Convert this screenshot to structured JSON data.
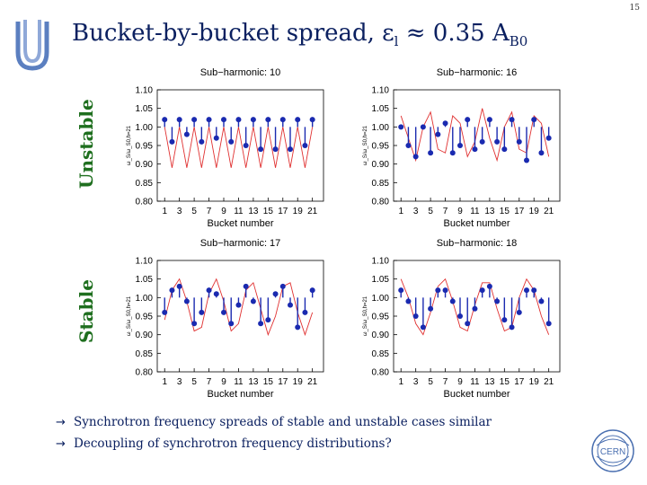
{
  "slide": {
    "page_number": "15",
    "title_main": "Bucket-by-bucket spread, ε",
    "title_sub1": "l",
    "title_rest": " ≈ 0.35 A",
    "title_sub2": "B0",
    "label_unstable": "Unstable",
    "label_stable": "Stable",
    "bullets": [
      "Synchrotron frequency spreads of stable and unstable cases similar",
      "Decoupling of synchrotron frequency distributions?"
    ],
    "bullet_arrow": "→",
    "cern_logo_text": "CERN"
  },
  "colors": {
    "title": "#0b2060",
    "side_labels": "#1f6f1f",
    "stems": "#1a2ab0",
    "reference_curve": "#e03030",
    "axes": "#000000"
  },
  "chart_data": [
    {
      "type": "scatter",
      "title": "Sub−harmonic: 10",
      "xlabel": "Bucket number",
      "ylabel": "ω_S/ω_S0,h=21",
      "xticks": [
        1,
        3,
        5,
        7,
        9,
        11,
        13,
        15,
        17,
        19,
        21
      ],
      "yticks": [
        "0.80",
        "0.85",
        "0.90",
        "0.95",
        "1.00",
        "1.05",
        "1.10"
      ],
      "xlim": [
        0,
        22.5
      ],
      "ylim": [
        0.8,
        1.1
      ],
      "grid": false,
      "baseline": 1.0,
      "series": [
        {
          "x": [
            1,
            2,
            3,
            4,
            5,
            6,
            7,
            8,
            9,
            10,
            11,
            12,
            13,
            14,
            15,
            16,
            17,
            18,
            19,
            20,
            21
          ],
          "values": [
            1.02,
            0.96,
            1.02,
            0.98,
            1.02,
            0.96,
            1.02,
            0.97,
            1.02,
            0.96,
            1.02,
            0.95,
            1.02,
            0.94,
            1.02,
            0.94,
            1.02,
            0.94,
            1.02,
            0.95,
            1.02
          ]
        }
      ],
      "reference_curve_x": [
        1,
        2,
        3,
        4,
        5,
        6,
        7,
        8,
        9,
        10,
        11,
        12,
        13,
        14,
        15,
        16,
        17,
        18,
        19,
        20,
        21
      ],
      "reference_curve_y": [
        1.0,
        0.89,
        1.0,
        0.89,
        1.0,
        0.89,
        1.0,
        0.89,
        1.0,
        0.89,
        1.0,
        0.89,
        1.0,
        0.89,
        1.0,
        0.89,
        1.0,
        0.89,
        1.0,
        0.89,
        1.0
      ]
    },
    {
      "type": "scatter",
      "title": "Sub−harmonic: 16",
      "xlabel": "Bucket number",
      "ylabel": "ω_S/ω_S0,h=21",
      "xticks": [
        1,
        3,
        5,
        7,
        9,
        11,
        13,
        15,
        17,
        19,
        21
      ],
      "yticks": [
        "0.80",
        "0.85",
        "0.90",
        "0.95",
        "1.00",
        "1.05",
        "1.10"
      ],
      "xlim": [
        0,
        22.5
      ],
      "ylim": [
        0.8,
        1.1
      ],
      "grid": false,
      "baseline": 1.0,
      "series": [
        {
          "x": [
            1,
            2,
            3,
            4,
            5,
            6,
            7,
            8,
            9,
            10,
            11,
            12,
            13,
            14,
            15,
            16,
            17,
            18,
            19,
            20,
            21
          ],
          "values": [
            1.0,
            0.95,
            0.92,
            1.0,
            0.93,
            0.98,
            1.01,
            0.93,
            0.95,
            1.02,
            0.94,
            0.96,
            1.02,
            0.96,
            0.94,
            1.02,
            0.96,
            0.91,
            1.02,
            0.93,
            0.97
          ]
        }
      ],
      "reference_curve_x": [
        1,
        2,
        3,
        4,
        5,
        6,
        7,
        8,
        9,
        10,
        11,
        12,
        13,
        14,
        15,
        16,
        17,
        18,
        19,
        20,
        21
      ],
      "reference_curve_y": [
        1.03,
        0.97,
        0.91,
        1.0,
        1.04,
        0.94,
        0.93,
        1.03,
        1.01,
        0.92,
        0.96,
        1.05,
        0.97,
        0.91,
        1.0,
        1.04,
        0.94,
        0.93,
        1.03,
        1.01,
        0.92
      ]
    },
    {
      "type": "scatter",
      "title": "Sub−harmonic: 17",
      "xlabel": "Bucket number",
      "ylabel": "ω_S/ω_S0,h=21",
      "xticks": [
        1,
        3,
        5,
        7,
        9,
        11,
        13,
        15,
        17,
        19,
        21
      ],
      "yticks": [
        "0.80",
        "0.85",
        "0.90",
        "0.95",
        "1.00",
        "1.05",
        "1.10"
      ],
      "xlim": [
        0,
        22.5
      ],
      "ylim": [
        0.8,
        1.1
      ],
      "grid": false,
      "baseline": 1.0,
      "series": [
        {
          "x": [
            1,
            2,
            3,
            4,
            5,
            6,
            7,
            8,
            9,
            10,
            11,
            12,
            13,
            14,
            15,
            16,
            17,
            18,
            19,
            20,
            21
          ],
          "values": [
            0.96,
            1.02,
            1.03,
            0.99,
            0.93,
            0.96,
            1.02,
            1.01,
            0.96,
            0.93,
            0.98,
            1.03,
            0.99,
            0.93,
            0.94,
            1.01,
            1.03,
            0.98,
            0.92,
            0.96,
            1.02
          ]
        }
      ],
      "reference_curve_x": [
        1,
        2,
        3,
        4,
        5,
        6,
        7,
        8,
        9,
        10,
        11,
        12,
        13,
        14,
        15,
        16,
        17,
        18,
        19,
        20,
        21
      ],
      "reference_curve_y": [
        0.94,
        1.02,
        1.05,
        0.99,
        0.91,
        0.92,
        1.01,
        1.05,
        0.99,
        0.91,
        0.93,
        1.02,
        1.04,
        0.97,
        0.9,
        0.95,
        1.03,
        1.04,
        0.96,
        0.9,
        0.96
      ]
    },
    {
      "type": "scatter",
      "title": "Sub−harmonic: 18",
      "xlabel": "Bucket number",
      "ylabel": "ω_S/ω_S0,h=21",
      "xticks": [
        1,
        3,
        5,
        7,
        9,
        11,
        13,
        15,
        17,
        19,
        21
      ],
      "yticks": [
        "0.80",
        "0.85",
        "0.90",
        "0.95",
        "1.00",
        "1.05",
        "1.10"
      ],
      "xlim": [
        0,
        22.5
      ],
      "ylim": [
        0.8,
        1.1
      ],
      "grid": false,
      "baseline": 1.0,
      "series": [
        {
          "x": [
            1,
            2,
            3,
            4,
            5,
            6,
            7,
            8,
            9,
            10,
            11,
            12,
            13,
            14,
            15,
            16,
            17,
            18,
            19,
            20,
            21
          ],
          "values": [
            1.02,
            0.99,
            0.95,
            0.92,
            0.97,
            1.02,
            1.02,
            0.99,
            0.95,
            0.93,
            0.97,
            1.02,
            1.03,
            0.99,
            0.94,
            0.92,
            0.96,
            1.02,
            1.02,
            0.99,
            0.93
          ]
        }
      ],
      "reference_curve_x": [
        1,
        2,
        3,
        4,
        5,
        6,
        7,
        8,
        9,
        10,
        11,
        12,
        13,
        14,
        15,
        16,
        17,
        18,
        19,
        20,
        21
      ],
      "reference_curve_y": [
        1.05,
        1.0,
        0.93,
        0.9,
        0.96,
        1.03,
        1.05,
        0.99,
        0.92,
        0.91,
        0.98,
        1.04,
        1.04,
        0.97,
        0.91,
        0.92,
        1.0,
        1.05,
        1.02,
        0.95,
        0.9
      ]
    }
  ]
}
